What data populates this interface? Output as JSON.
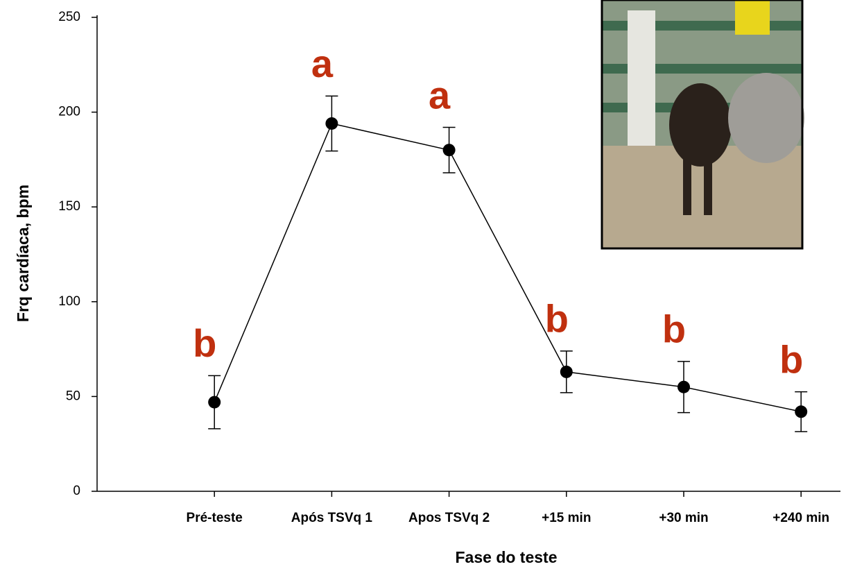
{
  "chart_data": {
    "type": "line",
    "x_label": "Fase do teste",
    "y_label": "Frq cardíaca, bpm",
    "categories": [
      "Pré-teste",
      "Após TSVq 1",
      "Apos TSVq 2",
      "+15 min",
      "+30 min",
      "+240 min"
    ],
    "values": [
      47,
      194,
      180,
      63,
      55,
      42
    ],
    "errors": [
      14,
      14.5,
      12,
      11,
      13.5,
      10.5
    ],
    "annotations": [
      "b",
      "a",
      "a",
      "b",
      "b",
      "b"
    ],
    "color": "#000000",
    "annotation_color": "#c0300f",
    "ylim": [
      0,
      250
    ],
    "yticks": [
      0,
      50,
      100,
      150,
      200,
      250
    ],
    "grid": false
  }
}
